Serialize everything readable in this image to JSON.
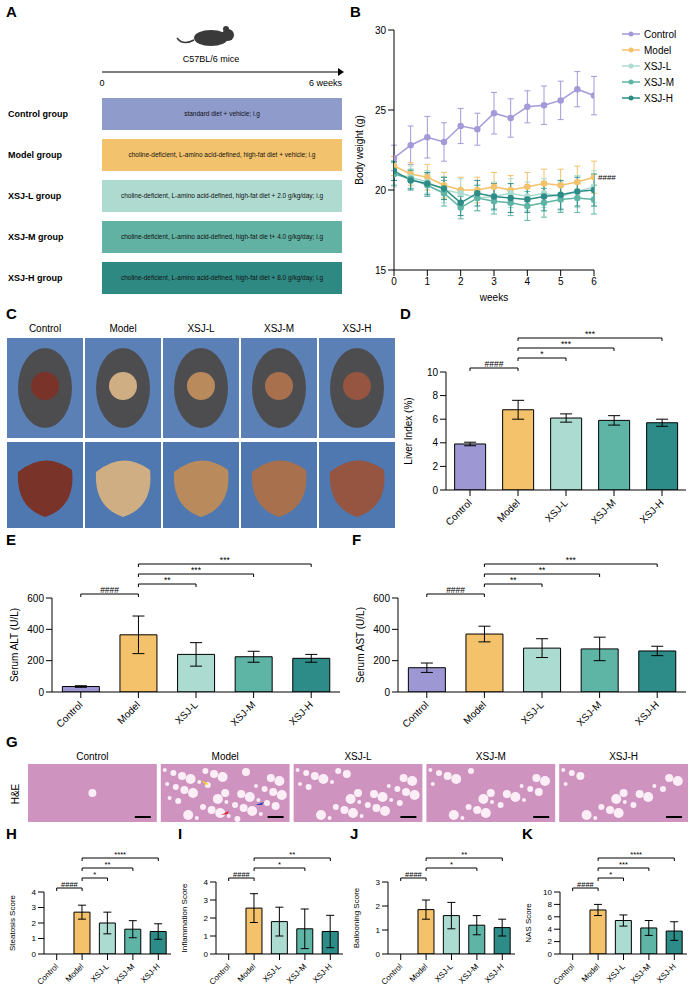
{
  "panels": {
    "A": {
      "panel": "A",
      "header": "C57BL/6 mice",
      "timeline": {
        "start": "0",
        "end": "6 weeks"
      },
      "groups": [
        {
          "name": "Control group",
          "treatment": "standard diet + vehicle; i.g",
          "color": "#8e9bcb"
        },
        {
          "name": "Model group",
          "treatment": "choline-deficient, L-amino acid-defined, high-fat diet + vehicle; i.g",
          "color": "#f2c36c"
        },
        {
          "name": "XSJ-L group",
          "treatment": "choline-deficient, L-amino acid-defined, high-fat diet + 2.0 g/kg/day; i.g",
          "color": "#aedad0"
        },
        {
          "name": "XSJ-M group",
          "treatment": "choline-deficient, L-amino acid-defined, high-fat die t+ 4.0 g/kg/day; i.g",
          "color": "#62b2a3"
        },
        {
          "name": "XSJ-H group",
          "treatment": "choline-deficient, L-amino acid-defined, high-fat diet + 8.0 g/kg/day; i.g",
          "color": "#2f8983"
        }
      ]
    },
    "C": {
      "panel": "C",
      "labels": [
        "Control",
        "Model",
        "XSJ-L",
        "XSJ-M",
        "XSJ-H"
      ]
    },
    "G": {
      "panel": "G",
      "stain": "H&E",
      "labels": [
        "Control",
        "Model",
        "XSJ-L",
        "XSJ-M",
        "XSJ-H"
      ]
    }
  },
  "chart_data": [
    {
      "panel": "B",
      "type": "line",
      "x": [
        0,
        0.5,
        1,
        1.5,
        2,
        2.5,
        3,
        3.5,
        4,
        4.5,
        5,
        5.5,
        6
      ],
      "xlim": [
        0,
        6
      ],
      "xticks": [
        0,
        1,
        2,
        3,
        4,
        5,
        6
      ],
      "ylim": [
        15,
        30
      ],
      "yticks": [
        15,
        20,
        25,
        30
      ],
      "x_label": "weeks",
      "y_label": "Body weight (g)",
      "legend": "right",
      "marker": "circle",
      "series": [
        {
          "name": "Control",
          "color": "#a39ad8",
          "values": [
            22,
            22.8,
            23.3,
            23,
            24,
            23.8,
            24.8,
            24.5,
            25.2,
            25.3,
            25.6,
            26.3,
            25.9
          ],
          "errors": [
            0.8,
            1.2,
            1.3,
            1.2,
            1.1,
            1.0,
            1.3,
            1.2,
            1.0,
            1.2,
            1.2,
            1.1,
            1.2
          ]
        },
        {
          "name": "Model",
          "color": "#f3c26b",
          "values": [
            21.5,
            21,
            20.8,
            20.3,
            20,
            20,
            20.2,
            20,
            20.2,
            20.4,
            20.3,
            20.5,
            20.8
          ],
          "errors": [
            0.6,
            0.7,
            0.8,
            0.8,
            0.8,
            0.8,
            0.9,
            0.9,
            0.9,
            0.9,
            1.0,
            1.0,
            1.0
          ]
        },
        {
          "name": "XSJ-L",
          "color": "#acdcd1",
          "values": [
            21,
            20.8,
            20.5,
            20,
            19.8,
            19.5,
            19.6,
            19.8,
            19.6,
            19.8,
            19.6,
            19.9,
            20.2
          ],
          "errors": [
            0.8,
            0.7,
            0.7,
            0.8,
            0.9,
            0.8,
            0.9,
            0.9,
            0.9,
            0.9,
            0.9,
            1.0,
            1.0
          ]
        },
        {
          "name": "XSJ-M",
          "color": "#5fb5a5",
          "values": [
            21,
            20.7,
            20.3,
            19.8,
            18.9,
            19.5,
            19.3,
            19.2,
            19,
            19.2,
            19.4,
            19.5,
            19.4
          ],
          "errors": [
            0.7,
            0.6,
            0.7,
            0.8,
            0.7,
            0.8,
            0.8,
            0.8,
            0.9,
            0.9,
            0.8,
            0.9,
            0.9
          ]
        },
        {
          "name": "XSJ-H",
          "color": "#2d8c87",
          "values": [
            21.2,
            20.6,
            20.4,
            20.1,
            19.2,
            19.8,
            19.6,
            19.5,
            19.4,
            19.6,
            19.7,
            19.9,
            20
          ],
          "errors": [
            0.6,
            0.6,
            0.7,
            0.7,
            0.8,
            0.8,
            0.8,
            0.9,
            0.8,
            0.9,
            0.9,
            0.9,
            1.0
          ]
        }
      ],
      "annotations": [
        {
          "series": "Model",
          "label": "####"
        }
      ]
    },
    {
      "panel": "D",
      "type": "bar",
      "categories": [
        "Control",
        "Model",
        "XSJ-L",
        "XSJ-M",
        "XSJ-H"
      ],
      "values": [
        3.9,
        6.8,
        6.1,
        5.9,
        5.7
      ],
      "errors": [
        0.15,
        0.8,
        0.35,
        0.4,
        0.3
      ],
      "colors": [
        "#9d98d4",
        "#f3c26b",
        "#acdcd1",
        "#5fb5a5",
        "#2d8c87"
      ],
      "ylim": [
        0,
        10
      ],
      "yticks": [
        0,
        2,
        4,
        6,
        8,
        10
      ],
      "y_label": "Liver Index (%)",
      "comparisons": [
        {
          "from": "Control",
          "to": "Model",
          "label": "####"
        },
        {
          "from": "Model",
          "to": "XSJ-L",
          "label": "*"
        },
        {
          "from": "Model",
          "to": "XSJ-M",
          "label": "***"
        },
        {
          "from": "Model",
          "to": "XSJ-H",
          "label": "***"
        }
      ]
    },
    {
      "panel": "E",
      "type": "bar",
      "categories": [
        "Control",
        "Model",
        "XSJ-L",
        "XSJ-M",
        "XSJ-H"
      ],
      "values": [
        35,
        365,
        240,
        225,
        215
      ],
      "errors": [
        5,
        120,
        75,
        35,
        25
      ],
      "colors": [
        "#9d98d4",
        "#f3c26b",
        "#acdcd1",
        "#5fb5a5",
        "#2d8c87"
      ],
      "ylim": [
        0,
        600
      ],
      "yticks": [
        0,
        200,
        400,
        600
      ],
      "y_label": "Serum ALT (U/L)",
      "comparisons": [
        {
          "from": "Control",
          "to": "Model",
          "label": "####"
        },
        {
          "from": "Model",
          "to": "XSJ-L",
          "label": "**"
        },
        {
          "from": "Model",
          "to": "XSJ-M",
          "label": "***"
        },
        {
          "from": "Model",
          "to": "XSJ-H",
          "label": "***"
        }
      ]
    },
    {
      "panel": "F",
      "type": "bar",
      "categories": [
        "Control",
        "Model",
        "XSJ-L",
        "XSJ-M",
        "XSJ-H"
      ],
      "values": [
        155,
        370,
        280,
        275,
        262
      ],
      "errors": [
        30,
        50,
        60,
        75,
        30
      ],
      "colors": [
        "#9d98d4",
        "#f3c26b",
        "#acdcd1",
        "#5fb5a5",
        "#2d8c87"
      ],
      "ylim": [
        0,
        600
      ],
      "yticks": [
        0,
        200,
        400,
        600
      ],
      "y_label": "Serum AST (U/L)",
      "comparisons": [
        {
          "from": "Control",
          "to": "Model",
          "label": "####"
        },
        {
          "from": "Model",
          "to": "XSJ-L",
          "label": "**"
        },
        {
          "from": "Model",
          "to": "XSJ-M",
          "label": "**"
        },
        {
          "from": "Model",
          "to": "XSJ-H",
          "label": "***"
        }
      ]
    },
    {
      "panel": "H",
      "type": "bar",
      "categories": [
        "Control",
        "Model",
        "XSJ-L",
        "XSJ-M",
        "XSJ-H"
      ],
      "values": [
        0,
        2.7,
        2.0,
        1.6,
        1.45
      ],
      "errors": [
        0,
        0.45,
        0.7,
        0.55,
        0.5
      ],
      "colors": [
        "#9d98d4",
        "#f3c26b",
        "#acdcd1",
        "#5fb5a5",
        "#2d8c87"
      ],
      "ylim": [
        0,
        4
      ],
      "yticks": [
        0,
        1,
        2,
        3,
        4
      ],
      "y_label": "Steatosis Score",
      "comparisons": [
        {
          "from": "Control",
          "to": "Model",
          "label": "####"
        },
        {
          "from": "Model",
          "to": "XSJ-L",
          "label": "*"
        },
        {
          "from": "Model",
          "to": "XSJ-M",
          "label": "**"
        },
        {
          "from": "Model",
          "to": "XSJ-H",
          "label": "****"
        }
      ]
    },
    {
      "panel": "I",
      "type": "bar",
      "categories": [
        "Control",
        "Model",
        "XSJ-L",
        "XSJ-M",
        "XSJ-H"
      ],
      "values": [
        0,
        2.55,
        1.8,
        1.4,
        1.25
      ],
      "errors": [
        0,
        0.8,
        0.8,
        1.1,
        0.9
      ],
      "colors": [
        "#9d98d4",
        "#f3c26b",
        "#acdcd1",
        "#5fb5a5",
        "#2d8c87"
      ],
      "ylim": [
        0,
        4
      ],
      "yticks": [
        0,
        1,
        2,
        3,
        4
      ],
      "y_label": "Inflammation Score",
      "comparisons": [
        {
          "from": "Control",
          "to": "Model",
          "label": "####"
        },
        {
          "from": "Model",
          "to": "XSJ-M",
          "label": "*"
        },
        {
          "from": "Model",
          "to": "XSJ-H",
          "label": "**"
        }
      ]
    },
    {
      "panel": "J",
      "type": "bar",
      "categories": [
        "Control",
        "Model",
        "XSJ-L",
        "XSJ-M",
        "XSJ-H"
      ],
      "values": [
        0,
        1.85,
        1.6,
        1.2,
        1.1
      ],
      "errors": [
        0,
        0.4,
        0.55,
        0.4,
        0.35
      ],
      "colors": [
        "#9d98d4",
        "#f3c26b",
        "#acdcd1",
        "#5fb5a5",
        "#2d8c87"
      ],
      "ylim": [
        0,
        3
      ],
      "yticks": [
        0,
        1,
        2,
        3
      ],
      "y_label": "Ballooning Score",
      "comparisons": [
        {
          "from": "Control",
          "to": "Model",
          "label": "####"
        },
        {
          "from": "Model",
          "to": "XSJ-M",
          "label": "*"
        },
        {
          "from": "Model",
          "to": "XSJ-H",
          "label": "**"
        }
      ]
    },
    {
      "panel": "K",
      "type": "bar",
      "categories": [
        "Control",
        "Model",
        "XSJ-L",
        "XSJ-M",
        "XSJ-H"
      ],
      "values": [
        0,
        7.1,
        5.4,
        4.2,
        3.7
      ],
      "errors": [
        0,
        0.9,
        0.9,
        1.2,
        1.5
      ],
      "colors": [
        "#9d98d4",
        "#f3c26b",
        "#acdcd1",
        "#5fb5a5",
        "#2d8c87"
      ],
      "ylim": [
        0,
        10
      ],
      "yticks": [
        0,
        2,
        4,
        6,
        8,
        10
      ],
      "y_label": "NAS Score",
      "comparisons": [
        {
          "from": "Control",
          "to": "Model",
          "label": "####"
        },
        {
          "from": "Model",
          "to": "XSJ-L",
          "label": "*"
        },
        {
          "from": "Model",
          "to": "XSJ-M",
          "label": "***"
        },
        {
          "from": "Model",
          "to": "XSJ-H",
          "label": "****"
        }
      ]
    }
  ]
}
